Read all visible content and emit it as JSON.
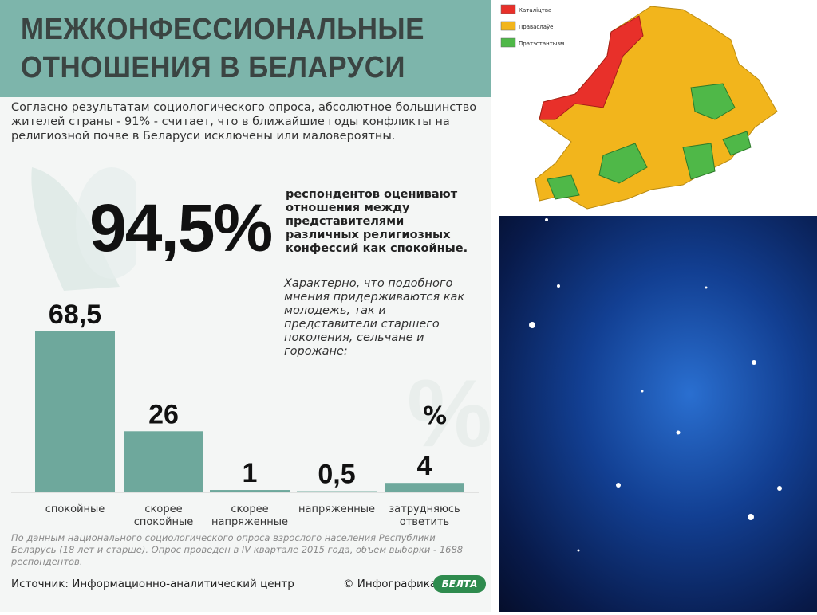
{
  "header": {
    "title_line1": "МЕЖКОНФЕССИОНАЛЬНЫЕ",
    "title_line2": "ОТНОШЕНИЯ В БЕЛАРУСИ"
  },
  "intro": "Согласно результатам социологического опроса, абсолютное большинство жителей страны - 91% - считает, что в ближайшие годы конфликты на религиозной почве в Беларуси исключены или маловероятны.",
  "highlight": {
    "figure": "94,5%",
    "text": "респондентов оценивают отношения между представителями различных религиозных конфессий как спокойные.",
    "note": "Характерно, что подобного мнения придерживаются как молодежь, так и представители старшего поколения, сельчане и горожане:"
  },
  "chart_data": {
    "type": "bar",
    "unit": "%",
    "categories": [
      "спокойные",
      "скорее\nспокойные",
      "скорее\nнапряженные",
      "напряженные",
      "затрудняюсь\nответить"
    ],
    "values": [
      68.5,
      26,
      1,
      0.5,
      4
    ],
    "value_labels": [
      "68,5",
      "26",
      "1",
      "0,5",
      "4"
    ],
    "color": "#6ea89c"
  },
  "footnote": "По данным национального социологического опроса взрослого населения Республики Беларусь (18 лет и старше). Опрос проведен в IV квартале 2015 года, объем выборки - 1688 респондентов.",
  "source": "Источник: Информационно-аналитический центр",
  "credit": "© Инфографика",
  "logo": "БЕЛТА",
  "map_legend": [
    {
      "name": "Каталіцтва",
      "color": "#e8302a"
    },
    {
      "name": "Праваслаўе",
      "color": "#f2b51c"
    },
    {
      "name": "Пратэстантызм",
      "color": "#4fb848"
    }
  ]
}
